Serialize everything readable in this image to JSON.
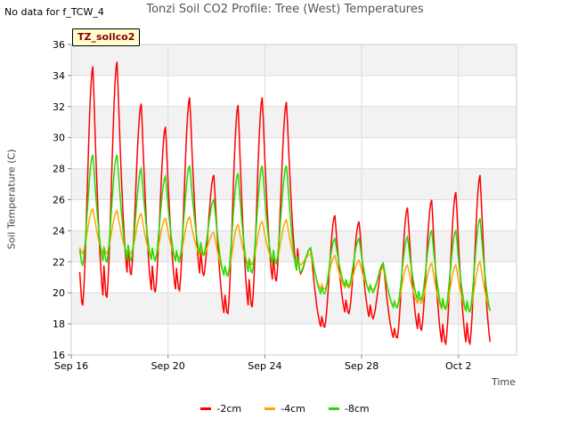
{
  "header": {
    "no_data_note": "No data for f_TCW_4",
    "title": "Tonzi Soil CO2 Profile: Tree (West) Temperatures",
    "tag": "TZ_soilco2"
  },
  "chart_data": {
    "type": "line",
    "title": "Tonzi Soil CO2 Profile: Tree (West) Temperatures",
    "xlabel": "Time",
    "ylabel": "Soil Temperature (C)",
    "ylim": [
      16,
      36
    ],
    "yticks": [
      16,
      18,
      20,
      22,
      24,
      26,
      28,
      30,
      32,
      34,
      36
    ],
    "xlim": [
      0,
      18.4
    ],
    "xtick_positions": [
      0,
      4,
      8,
      12,
      16
    ],
    "xtick_labels": [
      "Sep 16",
      "Sep 20",
      "Sep 24",
      "Sep 28",
      "Oct 2"
    ],
    "grid": true,
    "legend_position": "bottom",
    "series": [
      {
        "name": "-2cm",
        "color": "#ff0000",
        "daily_peaks": [
          34.6,
          34.9,
          32.2,
          30.7,
          32.6,
          27.6,
          32.1,
          32.6,
          32.3,
          22.9,
          25.0,
          24.6,
          21.9,
          25.5,
          26.0,
          26.5,
          27.6
        ],
        "daily_mins": [
          19.0,
          19.5,
          21.0,
          19.9,
          20.0,
          21.0,
          18.5,
          18.9,
          20.6,
          21.2,
          17.7,
          18.6,
          18.3,
          17.0,
          17.5,
          16.6,
          16.6
        ]
      },
      {
        "name": "-4cm",
        "color": "#ffa500",
        "daily_peaks": [
          25.4,
          25.3,
          25.1,
          24.8,
          24.9,
          23.9,
          24.4,
          24.6,
          24.7,
          22.5,
          22.4,
          22.1,
          21.6,
          21.8,
          21.9,
          21.8,
          22.0
        ],
        "daily_mins": [
          22.5,
          22.5,
          22.5,
          22.2,
          22.2,
          22.4,
          21.2,
          21.8,
          22.0,
          21.8,
          20.2,
          20.3,
          20.2,
          19.1,
          19.3,
          18.9,
          18.8
        ]
      },
      {
        "name": "-8cm",
        "color": "#22dd00",
        "daily_peaks": [
          28.9,
          28.9,
          28.0,
          27.5,
          28.2,
          26.0,
          27.7,
          28.2,
          28.2,
          22.9,
          23.5,
          23.5,
          21.9,
          23.6,
          24.0,
          24.0,
          24.8
        ],
        "daily_mins": [
          21.7,
          21.9,
          22.0,
          22.0,
          21.9,
          22.4,
          21.0,
          21.2,
          21.8,
          21.3,
          19.9,
          20.4,
          20.0,
          19.0,
          19.5,
          18.9,
          18.7
        ]
      }
    ]
  }
}
